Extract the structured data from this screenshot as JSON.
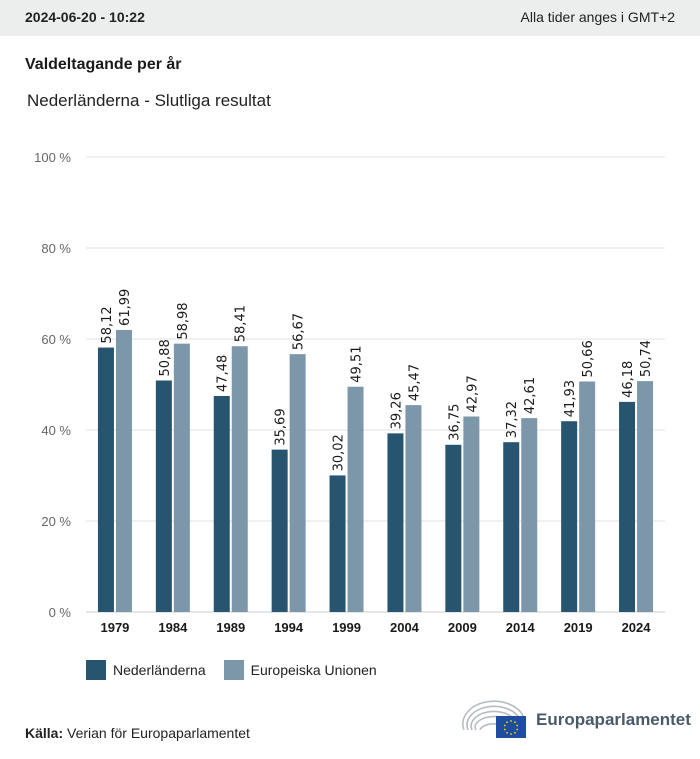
{
  "header": {
    "timestamp": "2024-06-20 - 10:22",
    "timezone_note": "Alla tider anges i GMT+2"
  },
  "title": "Valdeltagande per år",
  "subtitle": "Nederländerna - Slutliga resultat",
  "source": {
    "label": "Källa:",
    "text": "Verian för Europaparlamentet"
  },
  "logo": {
    "name": "Europaparlamentet"
  },
  "colors": {
    "netherlands": "#27546f",
    "eu": "#7c97aa",
    "grid": "#e2e2e2",
    "axis": "#c9cfd4"
  },
  "chart_data": {
    "type": "bar",
    "title": "Valdeltagande per år",
    "subtitle": "Nederländerna - Slutliga resultat",
    "xlabel": "",
    "ylabel": "",
    "ylim": [
      0,
      100
    ],
    "yticks": [
      0,
      20,
      40,
      60,
      80,
      100
    ],
    "ytick_labels": [
      "0 %",
      "20 %",
      "40 %",
      "60 %",
      "80 %",
      "100 %"
    ],
    "grid": true,
    "legend_position": "bottom-left",
    "categories": [
      "1979",
      "1984",
      "1989",
      "1994",
      "1999",
      "2004",
      "2009",
      "2014",
      "2019",
      "2024"
    ],
    "series": [
      {
        "name": "Nederländerna",
        "values": [
          58.12,
          50.88,
          47.48,
          35.69,
          30.02,
          39.26,
          36.75,
          37.32,
          41.93,
          46.18
        ],
        "labels": [
          "58,12",
          "50,88",
          "47,48",
          "35,69",
          "30,02",
          "39,26",
          "36,75",
          "37,32",
          "41,93",
          "46,18"
        ]
      },
      {
        "name": "Europeiska Unionen",
        "values": [
          61.99,
          58.98,
          58.41,
          56.67,
          49.51,
          45.47,
          42.97,
          42.61,
          50.66,
          50.74
        ],
        "labels": [
          "61,99",
          "58,98",
          "58,41",
          "56,67",
          "49,51",
          "45,47",
          "42,97",
          "42,61",
          "50,66",
          "50,74"
        ]
      }
    ]
  }
}
